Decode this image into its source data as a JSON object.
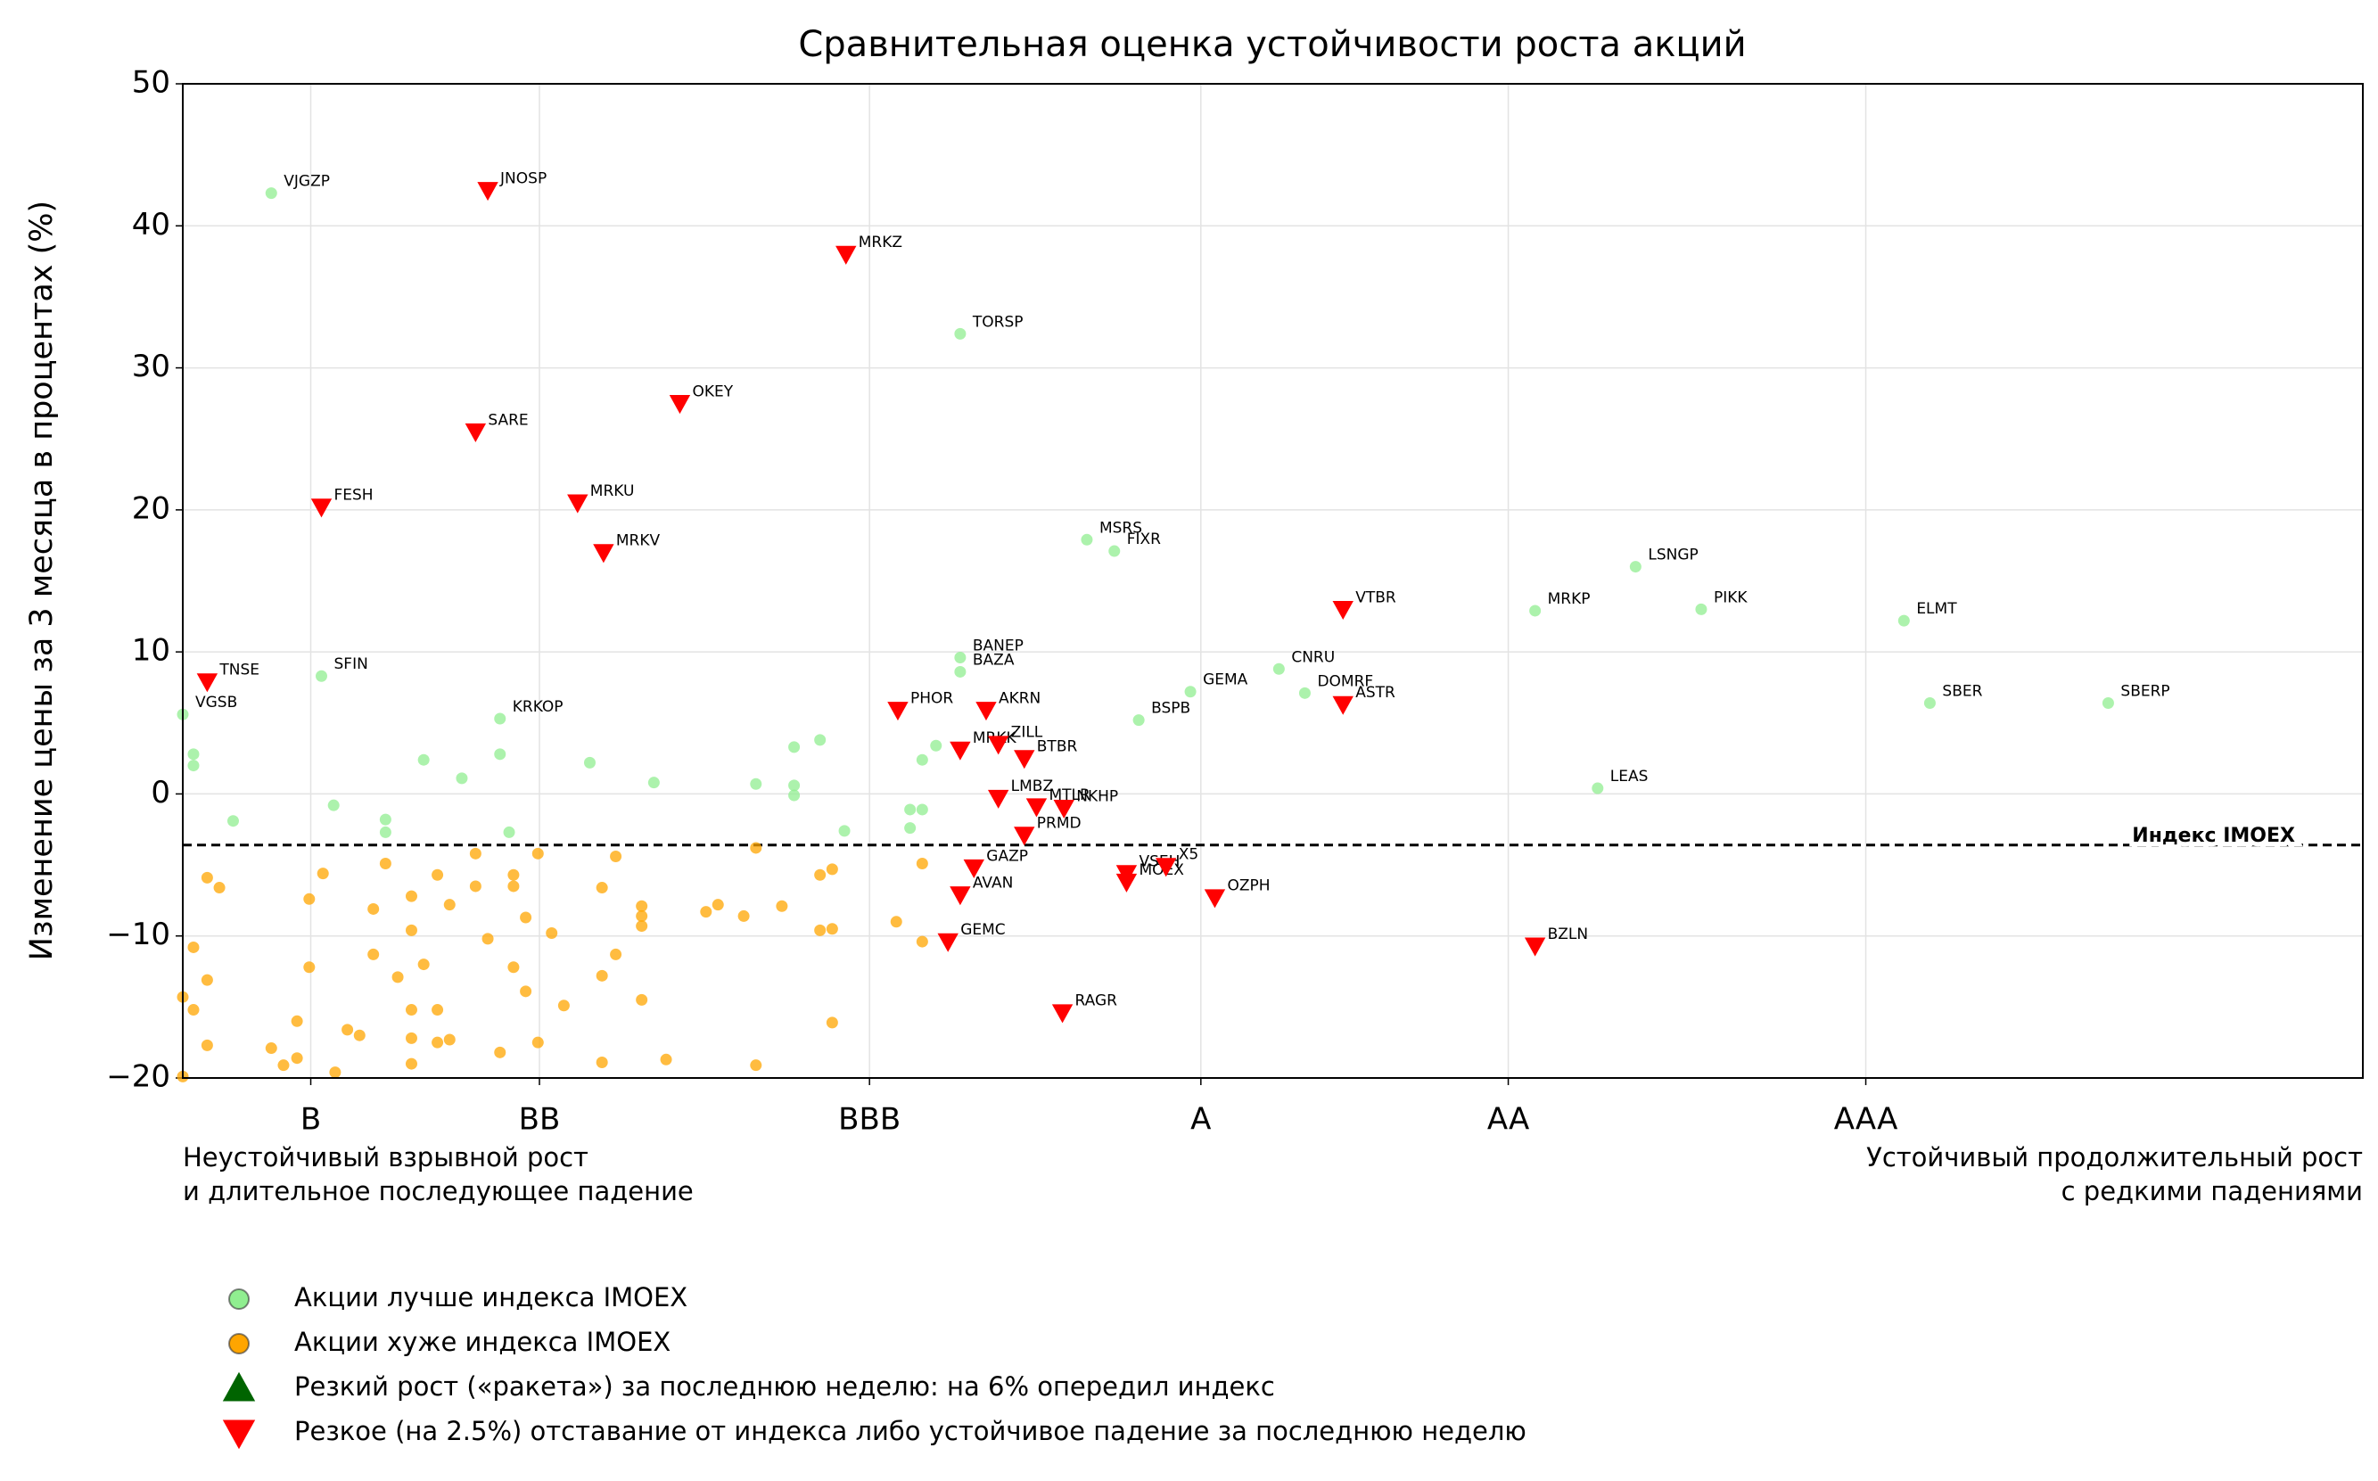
{
  "chart_data": {
    "type": "scatter",
    "title": "Сравнительная оценка устойчивости роста акций",
    "ylabel": "Изменение цены за 3 месяца в процентах (%)",
    "xlim": [
      0,
      100
    ],
    "ylim": [
      -20,
      50
    ],
    "xticks": [
      {
        "value": 5.87,
        "label": "B"
      },
      {
        "value": 16.36,
        "label": "BB"
      },
      {
        "value": 31.5,
        "label": "BBB"
      },
      {
        "value": 46.7,
        "label": "A"
      },
      {
        "value": 60.8,
        "label": "AA"
      },
      {
        "value": 77.2,
        "label": "AAA"
      }
    ],
    "yticks": [
      {
        "value": -20,
        "label": "−20"
      },
      {
        "value": -10,
        "label": "−10"
      },
      0,
      10,
      20,
      30,
      40,
      50
    ],
    "grid": true,
    "reference_line": {
      "y": -3.6,
      "label": "Индекс IMOEX"
    },
    "x_notes": {
      "left": [
        "Неустойчивый взрывной рост",
        "и длительное последующее падение"
      ],
      "right": [
        "Устойчивый продолжительный рост",
        "с редкими падениями"
      ]
    },
    "series": [
      {
        "name": "Акции лучше индекса IMOEX",
        "color": "#90ee90",
        "marker": "circle",
        "x": [
          4.06,
          35.66,
          41.47,
          42.73,
          66.64,
          69.65,
          62.03,
          78.95,
          50.28,
          51.47,
          46.22,
          43.85,
          80.14,
          88.32,
          64.9,
          35.66,
          35.66,
          6.36,
          14.55,
          0,
          0.49,
          0.49,
          2.31,
          6.92,
          9.3,
          9.3,
          11.05,
          12.8,
          14.55,
          14.97,
          18.67,
          21.61,
          26.29,
          28.04,
          28.04,
          28.04,
          29.23,
          30.35,
          33.36,
          33.92,
          33.36,
          33.92,
          34.55
        ],
        "y": [
          42.3,
          32.4,
          17.9,
          17.1,
          16.0,
          13.0,
          12.9,
          12.2,
          8.8,
          7.1,
          7.2,
          5.2,
          6.4,
          6.4,
          0.4,
          9.6,
          8.6,
          8.3,
          5.3,
          5.6,
          2.8,
          2.0,
          -1.9,
          -0.8,
          -1.8,
          -2.7,
          2.4,
          1.1,
          2.8,
          -2.7,
          2.2,
          0.8,
          0.7,
          3.3,
          0.6,
          -0.1,
          3.8,
          -2.6,
          -1.1,
          -1.1,
          -2.4,
          2.4,
          3.4
        ],
        "labels": [
          "VJGZP",
          "TORSP",
          "MSRS",
          "FIXR",
          "LSNGP",
          "PIKK",
          "MRKP",
          "ELMT",
          "CNRU",
          "DOMRF",
          "GEMA",
          "BSPB",
          "SBER",
          "SBERP",
          "LEAS",
          "BANEP",
          "BAZA",
          "SFIN",
          "KRKOP",
          "VGSB",
          null,
          null,
          null,
          null,
          null,
          null,
          null,
          null,
          null,
          null,
          null,
          null,
          null,
          null,
          null,
          null,
          null,
          null,
          null,
          null,
          null,
          null,
          null
        ]
      },
      {
        "name": "Акции хуже индекса IMOEX",
        "color": "#ffa500",
        "marker": "circle",
        "x": [
          1.12,
          1.68,
          0.49,
          1.12,
          0.49,
          1.12,
          0,
          0,
          4.06,
          4.62,
          5.24,
          5.24,
          5.8,
          5.8,
          6.43,
          6.99,
          7.55,
          8.11,
          8.74,
          8.74,
          9.3,
          9.86,
          10.49,
          10.49,
          10.49,
          10.49,
          10.49,
          11.05,
          11.68,
          11.68,
          11.68,
          12.24,
          12.24,
          13.43,
          13.43,
          13.99,
          14.55,
          15.17,
          15.17,
          15.17,
          15.73,
          15.73,
          16.29,
          16.29,
          16.92,
          17.48,
          19.23,
          19.23,
          19.23,
          19.86,
          19.86,
          21.05,
          21.05,
          21.05,
          21.05,
          22.17,
          24.0,
          24.55,
          25.73,
          26.29,
          26.29,
          27.48,
          29.23,
          29.23,
          29.79,
          29.79,
          29.79,
          32.73,
          33.92,
          33.92
        ],
        "y": [
          -5.9,
          -6.6,
          -10.8,
          -13.1,
          -15.2,
          -17.7,
          -14.3,
          -19.9,
          -17.9,
          -19.1,
          -18.6,
          -16.0,
          -7.4,
          -12.2,
          -5.6,
          -19.6,
          -16.6,
          -17.0,
          -8.1,
          -11.3,
          -4.9,
          -12.9,
          -7.2,
          -9.6,
          -15.2,
          -17.2,
          -19.0,
          -12.0,
          -5.7,
          -15.2,
          -17.5,
          -7.8,
          -17.3,
          -4.2,
          -6.5,
          -10.2,
          -18.2,
          -5.7,
          -6.5,
          -12.2,
          -8.7,
          -13.9,
          -4.2,
          -17.5,
          -9.8,
          -14.9,
          -6.6,
          -12.8,
          -18.9,
          -4.4,
          -11.3,
          -7.9,
          -8.6,
          -9.3,
          -14.5,
          -18.7,
          -8.3,
          -7.8,
          -8.6,
          -3.8,
          -19.1,
          -7.9,
          -5.7,
          -9.6,
          -5.3,
          -9.5,
          -16.1,
          -9.0,
          -4.9,
          -10.4
        ]
      },
      {
        "name": "Резкий рост («ракета») за последнюю неделю: на 6% опередил индекс",
        "color": "#006400",
        "marker": "triangle-up",
        "x": [],
        "y": [],
        "labels": []
      },
      {
        "name": "Резкое (на 2.5%) отставание от индекса либо устойчивое падение за последнюю неделю",
        "color": "#ff0000",
        "marker": "triangle-down",
        "x": [
          13.99,
          30.42,
          13.43,
          22.8,
          6.36,
          18.11,
          19.3,
          1.12,
          53.22,
          53.22,
          32.8,
          36.85,
          35.66,
          37.41,
          38.6,
          37.41,
          39.16,
          40.42,
          38.6,
          36.29,
          35.66,
          35.1,
          40.35,
          43.29,
          43.29,
          45.1,
          47.34,
          62.03
        ],
        "y": [
          42.5,
          38.0,
          25.5,
          27.5,
          20.2,
          20.5,
          17.0,
          7.9,
          13.0,
          6.3,
          5.9,
          5.9,
          3.1,
          3.5,
          2.5,
          -0.3,
          -0.9,
          -1.0,
          -2.9,
          -5.2,
          -7.1,
          -10.4,
          -15.4,
          -5.6,
          -6.2,
          -5.1,
          -7.3,
          -10.7
        ],
        "labels": [
          "JNOSP",
          "MRKZ",
          "SARE",
          "OKEY",
          "FESH",
          "MRKU",
          "MRKV",
          "TNSE",
          "VTBR",
          "ASTR",
          "PHOR",
          "AKRN",
          "MRKK",
          "ZILL",
          "BTBR",
          "LMBZ",
          "MTLR",
          "NKHP",
          "PRMD",
          "GAZP",
          "AVAN",
          "GEMC",
          "RAGR",
          "VSEH",
          "MOEX",
          "X5",
          "OZPH",
          "BZLN"
        ]
      }
    ],
    "legend": "lower-left"
  }
}
